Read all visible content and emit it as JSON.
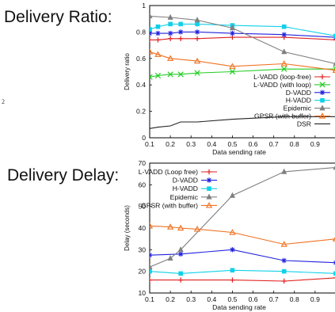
{
  "headings": {
    "top": "Delivery Ratio:",
    "bottom": "Delivery Delay:"
  },
  "stray_text": "2",
  "chart_data": [
    {
      "type": "line",
      "ylabel": "Delivery ratio",
      "xlabel": "Data sending rate",
      "xlim": [
        0.1,
        1.0
      ],
      "ylim": [
        0,
        1
      ],
      "x_ticks": [
        "0.1",
        "0.2",
        "0.3",
        "0.4",
        "0.5",
        "0.6",
        "0.7",
        "0.8",
        "0.9"
      ],
      "y_ticks": [
        "0",
        "0.2",
        "0.4",
        "0.6",
        "0.8",
        "1"
      ],
      "legend_position": "bottom-right",
      "series": [
        {
          "name": "L-VADD (loop-free)",
          "color": "#e02020",
          "marker": "plus",
          "x": [
            0.1,
            0.14,
            0.2,
            0.25,
            0.33,
            0.5,
            0.75,
            1.0
          ],
          "y": [
            0.74,
            0.74,
            0.75,
            0.75,
            0.75,
            0.76,
            0.76,
            0.74
          ]
        },
        {
          "name": "L-VADD (with loop)",
          "color": "#22cc22",
          "marker": "x",
          "x": [
            0.1,
            0.14,
            0.2,
            0.25,
            0.33,
            0.5,
            0.75,
            1.0
          ],
          "y": [
            0.46,
            0.47,
            0.48,
            0.48,
            0.49,
            0.5,
            0.52,
            0.52
          ]
        },
        {
          "name": "D-VADD",
          "color": "#2222dd",
          "marker": "star",
          "x": [
            0.1,
            0.14,
            0.2,
            0.25,
            0.33,
            0.5,
            0.75,
            1.0
          ],
          "y": [
            0.79,
            0.79,
            0.79,
            0.8,
            0.8,
            0.79,
            0.78,
            0.76
          ]
        },
        {
          "name": "H-VADD",
          "color": "#10d0e8",
          "marker": "square",
          "x": [
            0.1,
            0.14,
            0.2,
            0.25,
            0.33,
            0.5,
            0.75,
            1.0
          ],
          "y": [
            0.82,
            0.84,
            0.86,
            0.86,
            0.86,
            0.85,
            0.84,
            0.77
          ]
        },
        {
          "name": "Epidemic",
          "color": "#808080",
          "marker": "triangle-up",
          "x": [
            0.1,
            0.2,
            0.33,
            0.5,
            0.75,
            1.0
          ],
          "y": [
            0.92,
            0.91,
            0.89,
            0.83,
            0.65,
            0.56
          ]
        },
        {
          "name": "GPSR (with buffer)",
          "color": "#f07020",
          "marker": "triangle-down",
          "x": [
            0.1,
            0.14,
            0.2,
            0.33,
            0.5,
            0.75,
            1.0
          ],
          "y": [
            0.65,
            0.63,
            0.6,
            0.58,
            0.54,
            0.56,
            0.51
          ]
        },
        {
          "name": "DSR",
          "color": "#222222",
          "marker": "none",
          "x": [
            0.1,
            0.14,
            0.2,
            0.25,
            0.33,
            0.5,
            0.75,
            1.0
          ],
          "y": [
            0.07,
            0.08,
            0.09,
            0.12,
            0.12,
            0.14,
            0.16,
            0.16
          ]
        }
      ]
    },
    {
      "type": "line",
      "ylabel": "Delay (seconds)",
      "xlabel": "Data sending rate",
      "xlim": [
        0.1,
        1.0
      ],
      "ylim": [
        10,
        70
      ],
      "x_ticks": [
        "0.1",
        "0.2",
        "0.3",
        "0.4",
        "0.5",
        "0.6",
        "0.7",
        "0.8",
        "0.9"
      ],
      "y_ticks": [
        "10",
        "20",
        "30",
        "40",
        "50",
        "60",
        "70"
      ],
      "legend_position": "top-left",
      "series": [
        {
          "name": "L-VADD (Loop free)",
          "color": "#e02020",
          "marker": "plus",
          "x": [
            0.1,
            0.25,
            0.5,
            0.75,
            1.0
          ],
          "y": [
            16,
            16,
            16,
            15.5,
            17
          ]
        },
        {
          "name": "D-VADD",
          "color": "#2222dd",
          "marker": "star",
          "x": [
            0.1,
            0.25,
            0.5,
            0.75,
            1.0
          ],
          "y": [
            27.5,
            28,
            30,
            25,
            24
          ]
        },
        {
          "name": "H-VADD",
          "color": "#10d0e8",
          "marker": "square",
          "x": [
            0.1,
            0.25,
            0.5,
            0.75,
            1.0
          ],
          "y": [
            20,
            19,
            20.5,
            20,
            19
          ]
        },
        {
          "name": "Epidemic",
          "color": "#808080",
          "marker": "triangle-up",
          "x": [
            0.1,
            0.2,
            0.25,
            0.5,
            0.75,
            1.0
          ],
          "y": [
            22,
            26,
            30,
            55,
            66,
            68
          ]
        },
        {
          "name": "GPSR (with buffer)",
          "color": "#f07020",
          "marker": "triangle-down",
          "x": [
            0.1,
            0.2,
            0.25,
            0.33,
            0.5,
            0.75,
            1.0
          ],
          "y": [
            41,
            40.5,
            40,
            39.5,
            38,
            32.5,
            35
          ]
        }
      ]
    }
  ]
}
